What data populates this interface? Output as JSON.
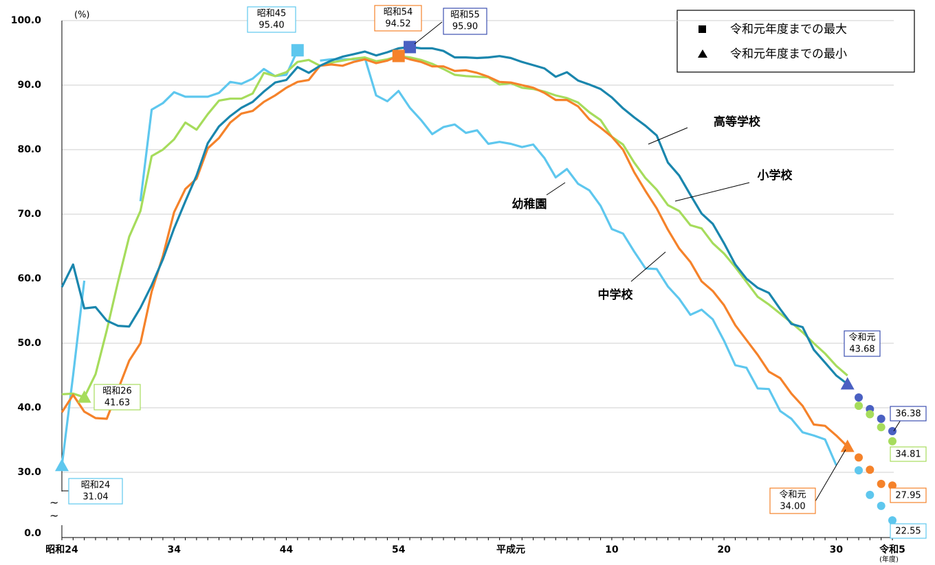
{
  "chart_data": {
    "type": "line",
    "unit_label": "(%)",
    "x_unit_label": "(年度)",
    "legend_items": [
      {
        "label": "令和元年度までの最大",
        "shape": "square"
      },
      {
        "label": "令和元年度までの最小",
        "shape": "triangle"
      }
    ],
    "categories": [
      "昭和24",
      null,
      null,
      null,
      null,
      null,
      null,
      null,
      null,
      null,
      "34",
      null,
      null,
      null,
      null,
      null,
      null,
      null,
      null,
      null,
      "44",
      null,
      null,
      null,
      null,
      null,
      null,
      null,
      null,
      null,
      "54",
      null,
      null,
      null,
      null,
      null,
      null,
      null,
      null,
      null,
      "平成元",
      null,
      null,
      null,
      null,
      null,
      null,
      null,
      null,
      "10",
      null,
      null,
      null,
      null,
      null,
      null,
      null,
      null,
      null,
      "20",
      null,
      null,
      null,
      null,
      null,
      null,
      null,
      null,
      null,
      "30",
      null,
      null,
      null,
      null,
      "令和5"
    ],
    "ylim": [
      30,
      100
    ],
    "yticks": [
      {
        "value": 0,
        "label": "0.0"
      },
      {
        "value": 30,
        "label": "30.0"
      },
      {
        "value": 40,
        "label": "40.0"
      },
      {
        "value": 50,
        "label": "50.0"
      },
      {
        "value": 60,
        "label": "60.0"
      },
      {
        "value": 70,
        "label": "70.0"
      },
      {
        "value": 80,
        "label": "80.0"
      },
      {
        "value": 90,
        "label": "90.0"
      },
      {
        "value": 100,
        "label": "100.0"
      }
    ],
    "axis_break": true,
    "grid": true,
    "series": [
      {
        "name": "高等学校",
        "color": "#1a86ad",
        "marker_color": "#4a60c2",
        "values": [
          58.7,
          62.2,
          55.4,
          55.6,
          53.5,
          52.7,
          52.6,
          55.5,
          59,
          63,
          67.8,
          72,
          76,
          81,
          83.6,
          85.2,
          86.5,
          87.4,
          89,
          90.4,
          90.8,
          92.8,
          91.9,
          93,
          93.8,
          94.4,
          94.8,
          95.2,
          94.6,
          95.1,
          95.7,
          95.9,
          95.7,
          95.7,
          95.3,
          94.3,
          94.3,
          94.2,
          94.3,
          94.5,
          94.2,
          93.6,
          93.1,
          92.6,
          91.3,
          92,
          90.7,
          90.1,
          89.4,
          88.1,
          86.4,
          85,
          83.7,
          82.2,
          78,
          76,
          73,
          70.1,
          68.5,
          65.5,
          62.2,
          60,
          58.6,
          57.8,
          55.3,
          53,
          52.5,
          49,
          47,
          45,
          43.68,
          null,
          null,
          null,
          null
        ],
        "dots": [
          null,
          null,
          null,
          null,
          null,
          null,
          null,
          null,
          null,
          null,
          null,
          null,
          null,
          null,
          null,
          null,
          null,
          null,
          null,
          null,
          null,
          null,
          null,
          null,
          null,
          null,
          null,
          null,
          null,
          null,
          null,
          null,
          null,
          null,
          null,
          null,
          null,
          null,
          null,
          null,
          null,
          null,
          null,
          null,
          null,
          null,
          null,
          null,
          null,
          null,
          null,
          null,
          null,
          null,
          null,
          null,
          null,
          null,
          null,
          null,
          null,
          null,
          null,
          null,
          null,
          null,
          null,
          null,
          null,
          null,
          null,
          41.6,
          39.8,
          38.3,
          36.38
        ],
        "max": {
          "label": "昭和55",
          "value": 95.9,
          "value_label": "95.90"
        },
        "min": {
          "label": "令和元",
          "value": 43.68,
          "value_label": "43.68"
        },
        "end_label": "36.38"
      },
      {
        "name": "小学校",
        "color": "#a6dc5c",
        "marker_color": "#a6dc5c",
        "values": [
          42.1,
          42.2,
          41.63,
          45.2,
          52,
          59.5,
          66.5,
          70.5,
          79,
          80,
          81.6,
          84.2,
          83.1,
          85.5,
          87.6,
          87.9,
          87.9,
          88.7,
          91.9,
          91.4,
          92,
          93.6,
          93.9,
          93,
          93.5,
          93.8,
          94.1,
          94.3,
          93.7,
          94,
          94.5,
          94.3,
          93.9,
          93.3,
          92.5,
          91.6,
          91.4,
          91.3,
          91.2,
          90.1,
          90.3,
          89.6,
          89.4,
          89,
          88.4,
          88,
          87.3,
          85.8,
          84.6,
          82,
          80.8,
          78,
          75.6,
          73.8,
          71.4,
          70.5,
          68.3,
          67.8,
          65.5,
          63.9,
          61.8,
          59.5,
          57.2,
          56,
          54.6,
          53.2,
          51.7,
          50,
          48.4,
          46.5,
          45,
          null,
          null,
          null,
          null
        ],
        "dots": [
          null,
          null,
          null,
          null,
          null,
          null,
          null,
          null,
          null,
          null,
          null,
          null,
          null,
          null,
          null,
          null,
          null,
          null,
          null,
          null,
          null,
          null,
          null,
          null,
          null,
          null,
          null,
          null,
          null,
          null,
          null,
          null,
          null,
          null,
          null,
          null,
          null,
          null,
          null,
          null,
          null,
          null,
          null,
          null,
          null,
          null,
          null,
          null,
          null,
          null,
          null,
          null,
          null,
          null,
          null,
          null,
          null,
          null,
          null,
          null,
          null,
          null,
          null,
          null,
          null,
          null,
          null,
          null,
          null,
          null,
          null,
          40.3,
          39,
          37,
          34.81
        ],
        "min": {
          "label": "昭和26",
          "value": 41.63,
          "value_label": "41.63"
        },
        "end_label": "34.81"
      },
      {
        "name": "中学校",
        "color": "#f5822a",
        "marker_color": "#f5822a",
        "values": [
          39.3,
          42,
          39.4,
          38.4,
          38.3,
          42.8,
          47.3,
          50,
          58,
          63.5,
          70.3,
          73.9,
          75.5,
          80.2,
          81.8,
          84.2,
          85.6,
          86,
          87.4,
          88.4,
          89.6,
          90.5,
          90.8,
          93,
          93.2,
          93,
          93.6,
          94,
          93.4,
          93.8,
          94.52,
          94,
          93.6,
          92.9,
          92.9,
          92.2,
          92.3,
          91.9,
          91.3,
          90.5,
          90.4,
          90,
          89.6,
          88.8,
          87.7,
          87.7,
          86.7,
          84.7,
          83.4,
          82,
          80,
          76.5,
          73.6,
          70.9,
          67.6,
          64.7,
          62.6,
          59.6,
          58.1,
          55.9,
          52.8,
          50.5,
          48.2,
          45.6,
          44.6,
          42.2,
          40.3,
          37.4,
          37.2,
          35.7,
          34,
          null,
          null,
          null,
          null
        ],
        "dots": [
          null,
          null,
          null,
          null,
          null,
          null,
          null,
          null,
          null,
          null,
          null,
          null,
          null,
          null,
          null,
          null,
          null,
          null,
          null,
          null,
          null,
          null,
          null,
          null,
          null,
          null,
          null,
          null,
          null,
          null,
          null,
          null,
          null,
          null,
          null,
          null,
          null,
          null,
          null,
          null,
          null,
          null,
          null,
          null,
          null,
          null,
          null,
          null,
          null,
          null,
          null,
          null,
          null,
          null,
          null,
          null,
          null,
          null,
          null,
          null,
          null,
          null,
          null,
          null,
          null,
          null,
          null,
          null,
          null,
          null,
          null,
          32.3,
          30.4,
          28.2,
          27.95
        ],
        "max": {
          "label": "昭和54",
          "value": 94.52,
          "value_label": "94.52"
        },
        "min": {
          "label": "令和元",
          "value": 34,
          "value_label": "34.00"
        },
        "end_label": "27.95"
      },
      {
        "name": "幼稚園",
        "color": "#5ec7ee",
        "marker_color": "#5ec7ee",
        "values": [
          31.04,
          45,
          59.7,
          null,
          null,
          null,
          null,
          72,
          86.2,
          87.2,
          88.9,
          88.2,
          88.2,
          88.2,
          88.8,
          90.5,
          90.2,
          91,
          92.5,
          91.4,
          91.6,
          95.4,
          null,
          93.8,
          94,
          94,
          94,
          94.2,
          88.4,
          87.5,
          89.1,
          86.5,
          84.6,
          82.4,
          83.5,
          83.9,
          82.6,
          83,
          80.9,
          81.2,
          80.9,
          80.4,
          80.8,
          78.7,
          75.7,
          77,
          74.7,
          73.7,
          71.3,
          67.7,
          67,
          64.2,
          61.6,
          61.5,
          58.8,
          56.9,
          54.4,
          55.2,
          53.7,
          50.4,
          46.6,
          46.2,
          43,
          42.9,
          39.5,
          38.3,
          36.2,
          35.7,
          35.1,
          31.1,
          null,
          null,
          null,
          null,
          null
        ],
        "dots": [
          null,
          null,
          null,
          null,
          null,
          null,
          null,
          null,
          null,
          null,
          null,
          null,
          null,
          null,
          null,
          null,
          null,
          null,
          null,
          null,
          null,
          null,
          null,
          null,
          null,
          null,
          null,
          null,
          null,
          null,
          null,
          null,
          null,
          null,
          null,
          null,
          null,
          null,
          null,
          null,
          null,
          null,
          null,
          null,
          null,
          null,
          null,
          null,
          null,
          null,
          null,
          null,
          null,
          null,
          null,
          null,
          null,
          null,
          null,
          null,
          null,
          null,
          null,
          null,
          null,
          null,
          null,
          null,
          null,
          null,
          null,
          30.3,
          26.5,
          24.8,
          22.55
        ],
        "max": {
          "label": "昭和45",
          "value": 95.4,
          "value_label": "95.40"
        },
        "min": {
          "label": "昭和24",
          "value": 31.04,
          "value_label": "31.04"
        },
        "end_label": "22.55"
      }
    ]
  }
}
